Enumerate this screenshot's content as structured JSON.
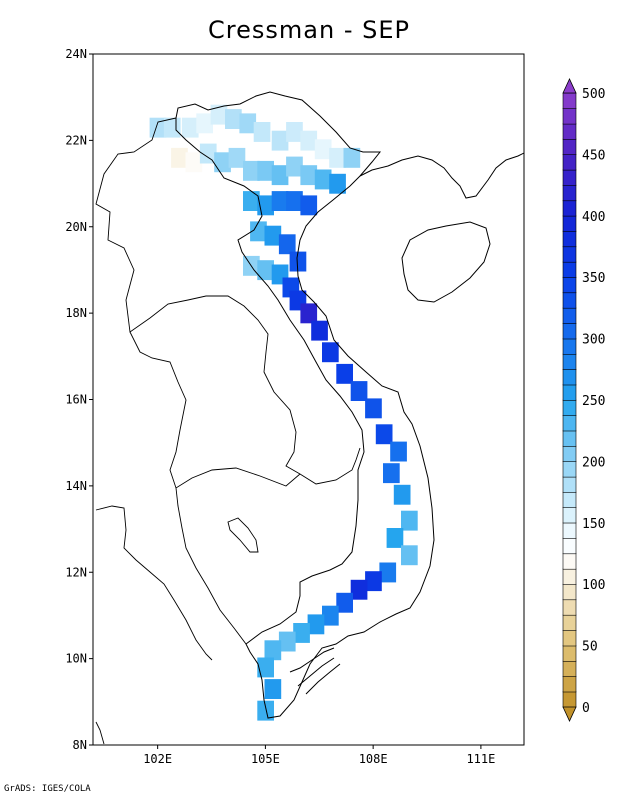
{
  "title": "Cressman - SEP",
  "credit": "GrADS: IGES/COLA",
  "map": {
    "lat_ticks": [
      "8N",
      "10N",
      "12N",
      "14N",
      "16N",
      "18N",
      "20N",
      "22N",
      "24N"
    ],
    "lon_ticks": [
      "102E",
      "105E",
      "108E",
      "111E"
    ],
    "lat_range": [
      8,
      24
    ],
    "lon_range": [
      100.2,
      112.2
    ]
  },
  "colorbar": {
    "labels": [
      "0",
      "50",
      "100",
      "150",
      "200",
      "250",
      "300",
      "350",
      "400",
      "450",
      "500"
    ],
    "min": 0,
    "max": 500,
    "step": 12.5,
    "extend": "both"
  },
  "colors": {
    "low": "#c99a2e",
    "mid": "#ffffff",
    "sky": "#2aa6f0",
    "blue": "#0a3de6",
    "violet": "#8a3ccb"
  },
  "chart_data": {
    "type": "heatmap",
    "variable": "Cressman - SEP",
    "grid_cells": [
      [
        102.0,
        22.3,
        180
      ],
      [
        102.4,
        22.3,
        170
      ],
      [
        102.9,
        22.3,
        160
      ],
      [
        103.3,
        22.4,
        150
      ],
      [
        103.7,
        22.6,
        160
      ],
      [
        104.1,
        22.5,
        180
      ],
      [
        104.5,
        22.4,
        190
      ],
      [
        104.9,
        22.2,
        170
      ],
      [
        105.4,
        22.0,
        175
      ],
      [
        105.8,
        22.2,
        165
      ],
      [
        106.2,
        22.0,
        160
      ],
      [
        106.6,
        21.8,
        150
      ],
      [
        107.0,
        21.6,
        160
      ],
      [
        107.4,
        21.6,
        200
      ],
      [
        102.6,
        21.6,
        110
      ],
      [
        103.0,
        21.5,
        120
      ],
      [
        103.4,
        21.7,
        170
      ],
      [
        103.8,
        21.5,
        200
      ],
      [
        104.2,
        21.6,
        190
      ],
      [
        104.6,
        21.3,
        200
      ],
      [
        105.0,
        21.3,
        210
      ],
      [
        105.4,
        21.2,
        220
      ],
      [
        105.8,
        21.4,
        200
      ],
      [
        106.2,
        21.2,
        210
      ],
      [
        106.6,
        21.1,
        230
      ],
      [
        107.0,
        21.0,
        260
      ],
      [
        104.6,
        20.6,
        240
      ],
      [
        105.0,
        20.5,
        260
      ],
      [
        105.4,
        20.6,
        290
      ],
      [
        105.8,
        20.6,
        300
      ],
      [
        106.2,
        20.5,
        320
      ],
      [
        104.8,
        19.9,
        230
      ],
      [
        105.2,
        19.8,
        260
      ],
      [
        105.6,
        19.6,
        310
      ],
      [
        105.9,
        19.2,
        330
      ],
      [
        104.6,
        19.1,
        200
      ],
      [
        105.0,
        19.0,
        220
      ],
      [
        105.4,
        18.9,
        260
      ],
      [
        105.7,
        18.6,
        340
      ],
      [
        105.9,
        18.3,
        360
      ],
      [
        106.2,
        18.0,
        420
      ],
      [
        106.5,
        17.6,
        380
      ],
      [
        106.8,
        17.1,
        360
      ],
      [
        107.2,
        16.6,
        350
      ],
      [
        107.6,
        16.2,
        330
      ],
      [
        108.0,
        15.8,
        330
      ],
      [
        108.3,
        15.2,
        340
      ],
      [
        108.7,
        14.8,
        300
      ],
      [
        108.5,
        14.3,
        300
      ],
      [
        108.8,
        13.8,
        260
      ],
      [
        109.0,
        13.2,
        230
      ],
      [
        108.6,
        12.8,
        250
      ],
      [
        109.0,
        12.4,
        220
      ],
      [
        108.4,
        12.0,
        290
      ],
      [
        108.0,
        11.8,
        360
      ],
      [
        107.6,
        11.6,
        380
      ],
      [
        107.2,
        11.3,
        320
      ],
      [
        106.8,
        11.0,
        280
      ],
      [
        106.4,
        10.8,
        260
      ],
      [
        106.0,
        10.6,
        240
      ],
      [
        105.6,
        10.4,
        220
      ],
      [
        105.2,
        10.2,
        230
      ],
      [
        105.0,
        9.8,
        240
      ],
      [
        105.2,
        9.3,
        260
      ],
      [
        105.0,
        8.8,
        240
      ]
    ]
  }
}
